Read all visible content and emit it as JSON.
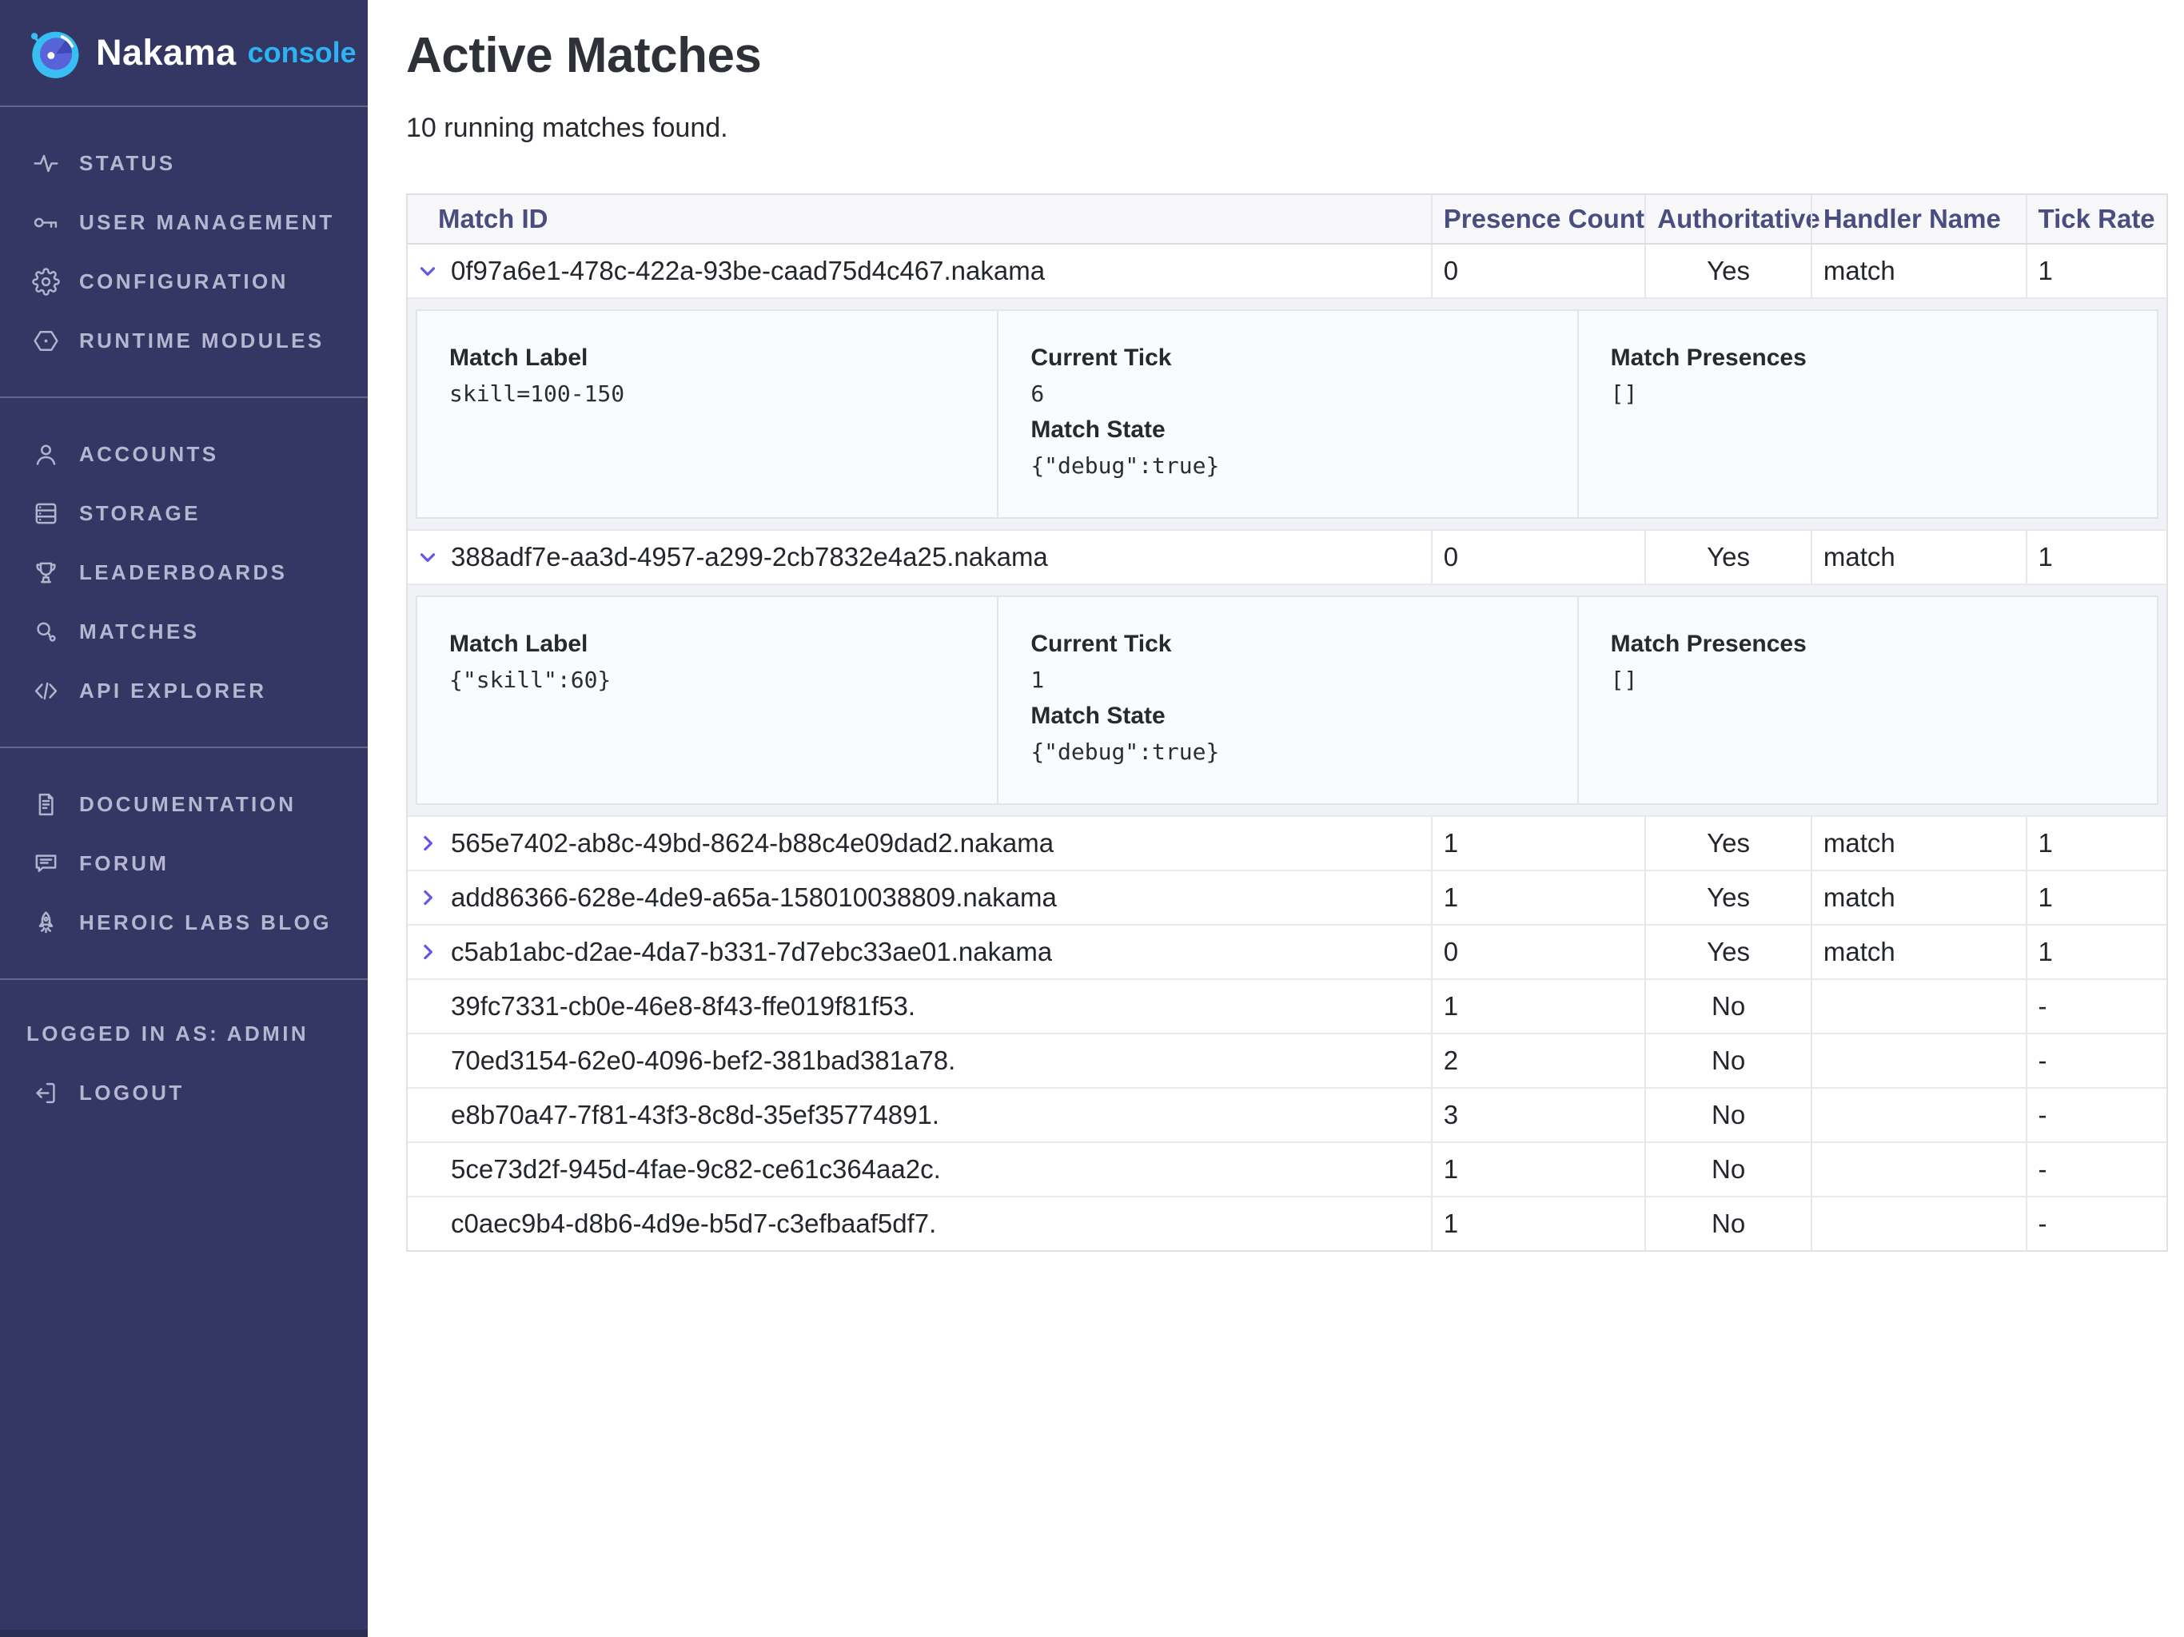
{
  "colors": {
    "sidebar_bg": "#343763",
    "accent_blue": "#2cb3f4",
    "header_text": "#4a4d80",
    "chevron_purple": "#6557e5"
  },
  "sidebar": {
    "logo": {
      "brand": "Nakama",
      "suffix": "console",
      "icon": "nakama-logo-icon"
    },
    "sections": [
      {
        "items": [
          {
            "icon": "activity-icon",
            "label": "STATUS"
          },
          {
            "icon": "key-icon",
            "label": "USER MANAGEMENT"
          },
          {
            "icon": "gear-icon",
            "label": "CONFIGURATION"
          },
          {
            "icon": "hexagon-icon",
            "label": "RUNTIME MODULES"
          }
        ]
      },
      {
        "items": [
          {
            "icon": "user-icon",
            "label": "ACCOUNTS"
          },
          {
            "icon": "database-icon",
            "label": "STORAGE"
          },
          {
            "icon": "trophy-icon",
            "label": "LEADERBOARDS"
          },
          {
            "icon": "matches-icon",
            "label": "MATCHES"
          },
          {
            "icon": "code-icon",
            "label": "API EXPLORER"
          }
        ]
      },
      {
        "items": [
          {
            "icon": "document-icon",
            "label": "DOCUMENTATION"
          },
          {
            "icon": "chat-icon",
            "label": "FORUM"
          },
          {
            "icon": "rocket-icon",
            "label": "HEROIC LABS BLOG"
          }
        ]
      }
    ],
    "footer": {
      "logged_in_as": "LOGGED IN AS: ADMIN",
      "logout_icon": "logout-icon",
      "logout_label": "LOGOUT"
    }
  },
  "main": {
    "title": "Active Matches",
    "subtitle": "10 running matches found.",
    "table": {
      "columns": [
        "Match ID",
        "Presence Count",
        "Authoritative",
        "Handler Name",
        "Tick Rate"
      ],
      "detail_labels": {
        "match_label": "Match Label",
        "current_tick": "Current Tick",
        "match_state": "Match State",
        "match_presences": "Match Presences"
      },
      "rows": [
        {
          "id": "0f97a6e1-478c-422a-93be-caad75d4c467.nakama",
          "presence_count": "0",
          "authoritative": "Yes",
          "handler_name": "match",
          "tick_rate": "1",
          "state": "expanded",
          "details": {
            "match_label": "skill=100-150",
            "current_tick": "6",
            "match_state": "{\"debug\":true}",
            "match_presences": "[]"
          }
        },
        {
          "id": "388adf7e-aa3d-4957-a299-2cb7832e4a25.nakama",
          "presence_count": "0",
          "authoritative": "Yes",
          "handler_name": "match",
          "tick_rate": "1",
          "state": "expanded",
          "details": {
            "match_label": "{\"skill\":60}",
            "current_tick": "1",
            "match_state": "{\"debug\":true}",
            "match_presences": "[]"
          }
        },
        {
          "id": "565e7402-ab8c-49bd-8624-b88c4e09dad2.nakama",
          "presence_count": "1",
          "authoritative": "Yes",
          "handler_name": "match",
          "tick_rate": "1",
          "state": "collapsed"
        },
        {
          "id": "add86366-628e-4de9-a65a-158010038809.nakama",
          "presence_count": "1",
          "authoritative": "Yes",
          "handler_name": "match",
          "tick_rate": "1",
          "state": "collapsed"
        },
        {
          "id": "c5ab1abc-d2ae-4da7-b331-7d7ebc33ae01.nakama",
          "presence_count": "0",
          "authoritative": "Yes",
          "handler_name": "match",
          "tick_rate": "1",
          "state": "collapsed"
        },
        {
          "id": "39fc7331-cb0e-46e8-8f43-ffe019f81f53.",
          "presence_count": "1",
          "authoritative": "No",
          "handler_name": "",
          "tick_rate": "-",
          "state": "none"
        },
        {
          "id": "70ed3154-62e0-4096-bef2-381bad381a78.",
          "presence_count": "2",
          "authoritative": "No",
          "handler_name": "",
          "tick_rate": "-",
          "state": "none"
        },
        {
          "id": "e8b70a47-7f81-43f3-8c8d-35ef35774891.",
          "presence_count": "3",
          "authoritative": "No",
          "handler_name": "",
          "tick_rate": "-",
          "state": "none"
        },
        {
          "id": "5ce73d2f-945d-4fae-9c82-ce61c364aa2c.",
          "presence_count": "1",
          "authoritative": "No",
          "handler_name": "",
          "tick_rate": "-",
          "state": "none"
        },
        {
          "id": "c0aec9b4-d8b6-4d9e-b5d7-c3efbaaf5df7.",
          "presence_count": "1",
          "authoritative": "No",
          "handler_name": "",
          "tick_rate": "-",
          "state": "none"
        }
      ]
    }
  }
}
